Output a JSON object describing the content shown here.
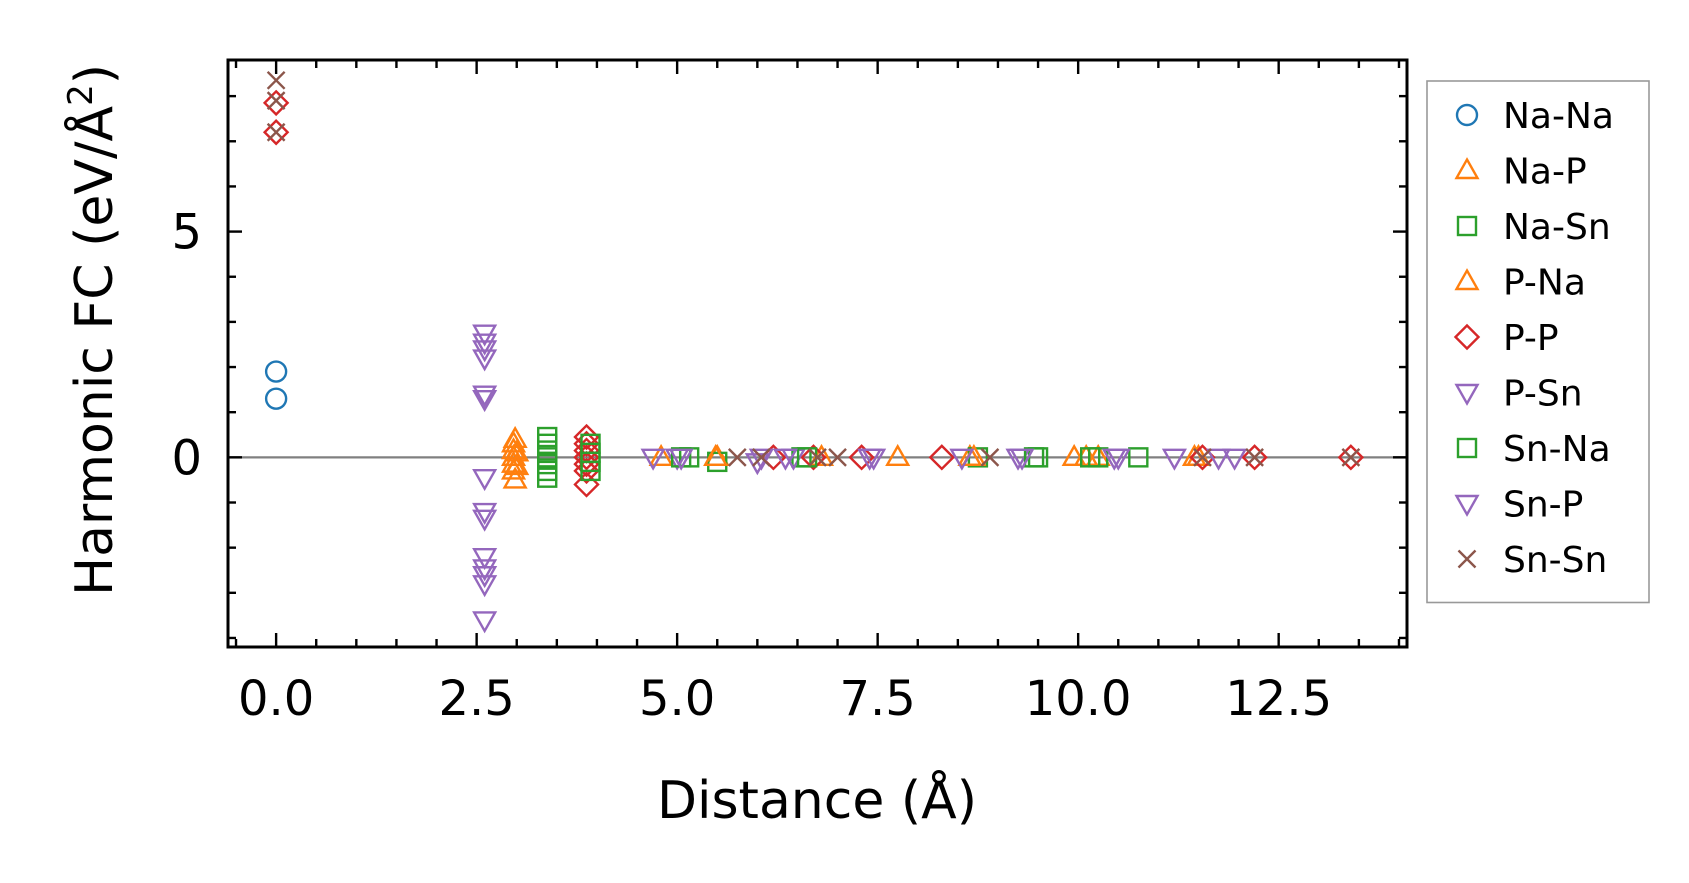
{
  "chart_data": {
    "type": "scatter",
    "title": "",
    "xlabel": "Distance (Å)",
    "ylabel_main": "Harmonic FC (eV/Å",
    "ylabel_sup": "2",
    "ylabel_close": ")",
    "ylabel_full": "Harmonic FC (eV/Å²)",
    "xlim": [
      -0.6,
      14.1
    ],
    "ylim": [
      -4.2,
      8.8
    ],
    "x_ticks": [
      0.0,
      2.5,
      5.0,
      7.5,
      10.0,
      12.5
    ],
    "x_tick_labels": [
      "0.0",
      "2.5",
      "5.0",
      "7.5",
      "10.0",
      "12.5"
    ],
    "y_ticks": [
      0,
      5
    ],
    "y_tick_labels": [
      "0",
      "5"
    ],
    "zero_line": true,
    "grid": false,
    "legend_position": "outside-right",
    "series": [
      {
        "name": "Na-Na",
        "marker": "circle",
        "color": "#1f77b4",
        "points": [
          [
            0,
            1.9
          ],
          [
            0,
            1.3
          ]
        ]
      },
      {
        "name": "Na-P",
        "marker": "triangle-up",
        "color": "#ff7f0e",
        "points": [
          [
            2.96,
            0.3
          ],
          [
            2.96,
            0.15
          ],
          [
            2.96,
            0.0
          ],
          [
            2.96,
            -0.15
          ],
          [
            2.96,
            -0.3
          ],
          [
            2.98,
            -0.5
          ],
          [
            2.98,
            0.4
          ],
          [
            3.0,
            0.1
          ],
          [
            3.0,
            -0.2
          ],
          [
            5.5,
            0
          ],
          [
            7.75,
            0
          ],
          [
            8.65,
            0
          ],
          [
            10.1,
            0
          ],
          [
            10.25,
            0
          ],
          [
            11.45,
            0
          ]
        ]
      },
      {
        "name": "Na-Sn",
        "marker": "square",
        "color": "#2ca02c",
        "points": [
          [
            3.38,
            0.45
          ],
          [
            3.38,
            0.3
          ],
          [
            3.38,
            0.15
          ],
          [
            3.38,
            0.0
          ],
          [
            3.38,
            -0.15
          ],
          [
            3.38,
            -0.3
          ],
          [
            3.38,
            -0.45
          ],
          [
            5.15,
            0
          ],
          [
            5.5,
            -0.1
          ],
          [
            6.55,
            0
          ],
          [
            8.75,
            0
          ],
          [
            9.5,
            0
          ],
          [
            10.25,
            0
          ],
          [
            10.75,
            0
          ]
        ]
      },
      {
        "name": "P-Na",
        "marker": "triangle-up",
        "color": "#ff7f0e",
        "points": [
          [
            4.8,
            0
          ],
          [
            5.48,
            0
          ],
          [
            6.8,
            0
          ],
          [
            8.7,
            0
          ],
          [
            9.95,
            0
          ],
          [
            11.5,
            0
          ]
        ]
      },
      {
        "name": "P-P",
        "marker": "diamond",
        "color": "#d62728",
        "points": [
          [
            0,
            7.85
          ],
          [
            0,
            7.2
          ],
          [
            3.87,
            0.45
          ],
          [
            3.87,
            0.3
          ],
          [
            3.87,
            0.15
          ],
          [
            3.87,
            0.0
          ],
          [
            3.87,
            -0.15
          ],
          [
            3.87,
            -0.3
          ],
          [
            3.87,
            -0.6
          ],
          [
            6.2,
            0
          ],
          [
            6.7,
            0
          ],
          [
            7.3,
            0
          ],
          [
            8.3,
            0
          ],
          [
            11.55,
            0
          ],
          [
            12.2,
            0
          ],
          [
            13.4,
            0
          ]
        ]
      },
      {
        "name": "P-Sn",
        "marker": "triangle-down",
        "color": "#9467bd",
        "points": [
          [
            2.6,
            2.75
          ],
          [
            2.6,
            2.55
          ],
          [
            2.6,
            2.4
          ],
          [
            2.6,
            2.2
          ],
          [
            2.6,
            1.4
          ],
          [
            2.6,
            1.3
          ],
          [
            2.6,
            -0.45
          ],
          [
            2.6,
            -1.2
          ],
          [
            2.6,
            -1.35
          ],
          [
            2.6,
            -2.2
          ],
          [
            2.6,
            -2.45
          ],
          [
            2.6,
            -2.6
          ],
          [
            2.6,
            -2.8
          ],
          [
            2.6,
            -3.6
          ],
          [
            4.7,
            0
          ],
          [
            5.0,
            0
          ],
          [
            6.05,
            0
          ],
          [
            6.45,
            0
          ],
          [
            7.45,
            0
          ],
          [
            9.25,
            0
          ],
          [
            10.5,
            0
          ],
          [
            11.2,
            0
          ],
          [
            11.95,
            0
          ]
        ]
      },
      {
        "name": "Sn-Na",
        "marker": "square",
        "color": "#2ca02c",
        "points": [
          [
            3.92,
            0.3
          ],
          [
            3.92,
            0.1
          ],
          [
            3.92,
            -0.1
          ],
          [
            3.92,
            -0.3
          ],
          [
            5.05,
            0
          ],
          [
            6.62,
            0
          ],
          [
            9.45,
            0
          ],
          [
            10.15,
            0
          ]
        ]
      },
      {
        "name": "Sn-P",
        "marker": "triangle-down",
        "color": "#9467bd",
        "points": [
          [
            5.05,
            0
          ],
          [
            6.0,
            -0.1
          ],
          [
            6.35,
            0
          ],
          [
            7.4,
            0
          ],
          [
            8.55,
            0
          ],
          [
            9.3,
            0
          ],
          [
            10.45,
            0
          ],
          [
            11.75,
            0
          ]
        ]
      },
      {
        "name": "Sn-Sn",
        "marker": "cross",
        "color": "#8c564b",
        "points": [
          [
            0,
            8.35
          ],
          [
            0,
            7.9
          ],
          [
            0,
            7.2
          ],
          [
            5.75,
            0
          ],
          [
            6.05,
            0
          ],
          [
            6.75,
            0
          ],
          [
            7.0,
            0
          ],
          [
            8.9,
            0
          ],
          [
            11.55,
            0
          ],
          [
            12.2,
            0
          ],
          [
            13.4,
            0
          ]
        ]
      }
    ]
  }
}
